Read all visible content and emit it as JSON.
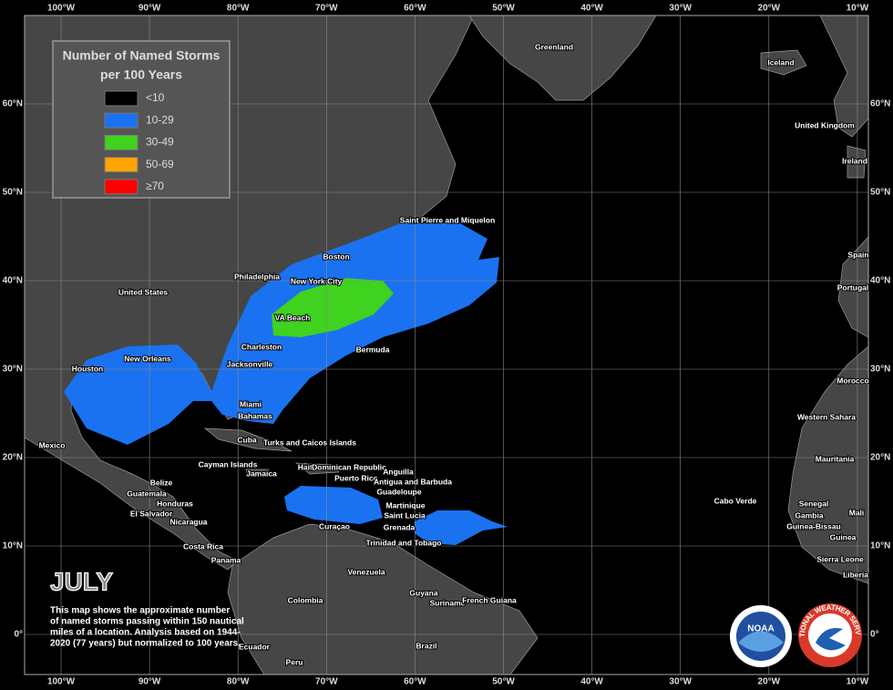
{
  "title": "JULY",
  "description": [
    "This map shows the approximate number",
    "of named storms passing within 150 nautical",
    "miles of a location. Analysis based on 1944-",
    "2020 (77 years) but normalized to 100 years."
  ],
  "legend": {
    "title": [
      "Number of Named Storms",
      "per 100 Years"
    ],
    "items": [
      {
        "label": "<10",
        "color": "#000000"
      },
      {
        "label": "10-29",
        "color": "#1a72f0"
      },
      {
        "label": "30-49",
        "color": "#3fd21e"
      },
      {
        "label": "50-69",
        "color": "#ffa500"
      },
      {
        "label": "≥70",
        "color": "#ff0000"
      }
    ]
  },
  "longitude_labels": [
    "100°W",
    "90°W",
    "80°W",
    "70°W",
    "60°W",
    "50°W",
    "40°W",
    "30°W",
    "20°W",
    "10°W"
  ],
  "latitude_labels": [
    "60°N",
    "50°N",
    "40°N",
    "30°N",
    "20°N",
    "10°N",
    "0°"
  ],
  "places": [
    "Greenland",
    "Iceland",
    "United Kingdom",
    "Ireland",
    "Saint Pierre and Miquelon",
    "Boston",
    "Philadelphia",
    "New York City",
    "United States",
    "Spain",
    "Portugal",
    "VA Beach",
    "Charleston",
    "Bermuda",
    "New Orleans",
    "Jacksonville",
    "Houston",
    "Morocco",
    "Miami",
    "Bahamas",
    "Western Sahara",
    "Cuba",
    "Turks and Caicos Islands",
    "Mexico",
    "Mauritania",
    "Cayman Islands",
    "Haiti",
    "Dominican Republic",
    "Anguilla",
    "Jamaica",
    "Puerto Rico",
    "Antigua and Barbuda",
    "Belize",
    "Guadeloupe",
    "Guatemala",
    "Honduras",
    "Cabo Verde",
    "Senegal",
    "Martinique",
    "Gambia",
    "El Salvador",
    "Saint Lucia",
    "Mali",
    "Nicaragua",
    "Curaçao",
    "Grenada",
    "Guinea-Bissau",
    "Guinea",
    "Trinidad and Tobago",
    "Costa Rica",
    "Panama",
    "Sierra Leone",
    "Venezuela",
    "Liberia",
    "Guyana",
    "Colombia",
    "Suriname",
    "French Guiana",
    "Ecuador",
    "Brazil",
    "Peru"
  ],
  "logos": [
    "NOAA",
    "NATIONAL WEATHER SERVICE"
  ]
}
